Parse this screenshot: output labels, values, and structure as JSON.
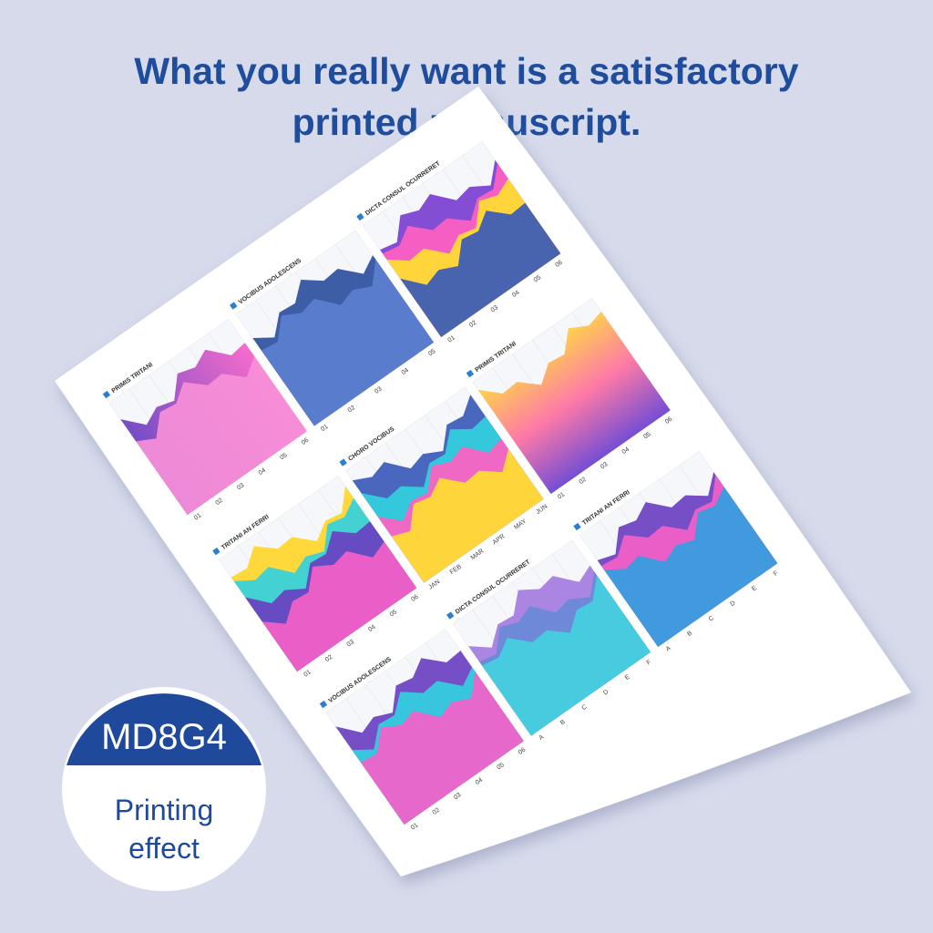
{
  "header": {
    "title_lines": [
      "What you really want is a satisfactory",
      "printed manuscript."
    ]
  },
  "badge": {
    "model": "MD8G4",
    "caption_lines": [
      "Printing",
      "effect"
    ]
  },
  "sheet": {
    "panels": [
      {
        "title": "PRIMIS TRITANI",
        "labels": [
          "01",
          "02",
          "03",
          "04",
          "05",
          "06"
        ]
      },
      {
        "title": "VOCIBUS ADOLESCENS",
        "labels": [
          "01",
          "02",
          "03",
          "04",
          "05"
        ]
      },
      {
        "title": "DICTA CONSUL OCURRERET",
        "labels": [
          "01",
          "02",
          "03",
          "04",
          "05",
          "06"
        ]
      },
      {
        "title": "TRITANI AN FERRI",
        "labels": [
          "01",
          "02",
          "03",
          "04",
          "05",
          "06"
        ]
      },
      {
        "title": "CHORO VOCIBUS",
        "labels": [
          "JAN",
          "FEB",
          "MAR",
          "APR",
          "MAY",
          "JUN"
        ]
      },
      {
        "title": "PRIMIS TRITANI",
        "labels": [
          "01",
          "02",
          "03",
          "04",
          "05",
          "06"
        ]
      },
      {
        "title": "VOCIBUS ADOLESCENS",
        "labels": [
          "01",
          "02",
          "03",
          "04",
          "05",
          "06"
        ]
      },
      {
        "title": "DICTA CONSUL OCURRERET",
        "labels": [
          "A",
          "B",
          "C",
          "D",
          "E",
          "F"
        ]
      },
      {
        "title": "TRITANI AN FERRI",
        "labels": [
          "A",
          "B",
          "C",
          "D",
          "E",
          "F"
        ]
      }
    ]
  }
}
